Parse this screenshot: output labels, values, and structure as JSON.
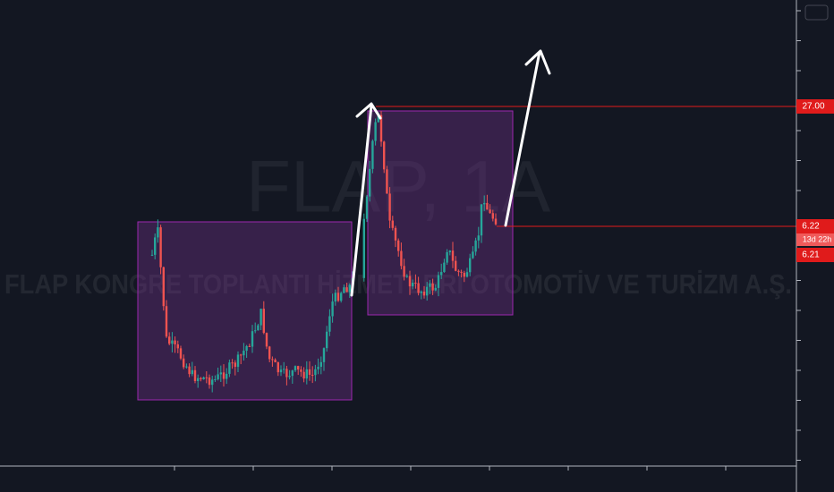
{
  "watermark": {
    "symbol": "FLAP, 1A",
    "name": "FLAP KONGRE TOPLANTI HİZMETLERİ OTOMOTİV VE TURİZM A.Ş."
  },
  "price_labels": {
    "high_level": "27.00",
    "last_price": "6.22",
    "countdown": "13d 22h",
    "low_level": "6.21"
  }
}
